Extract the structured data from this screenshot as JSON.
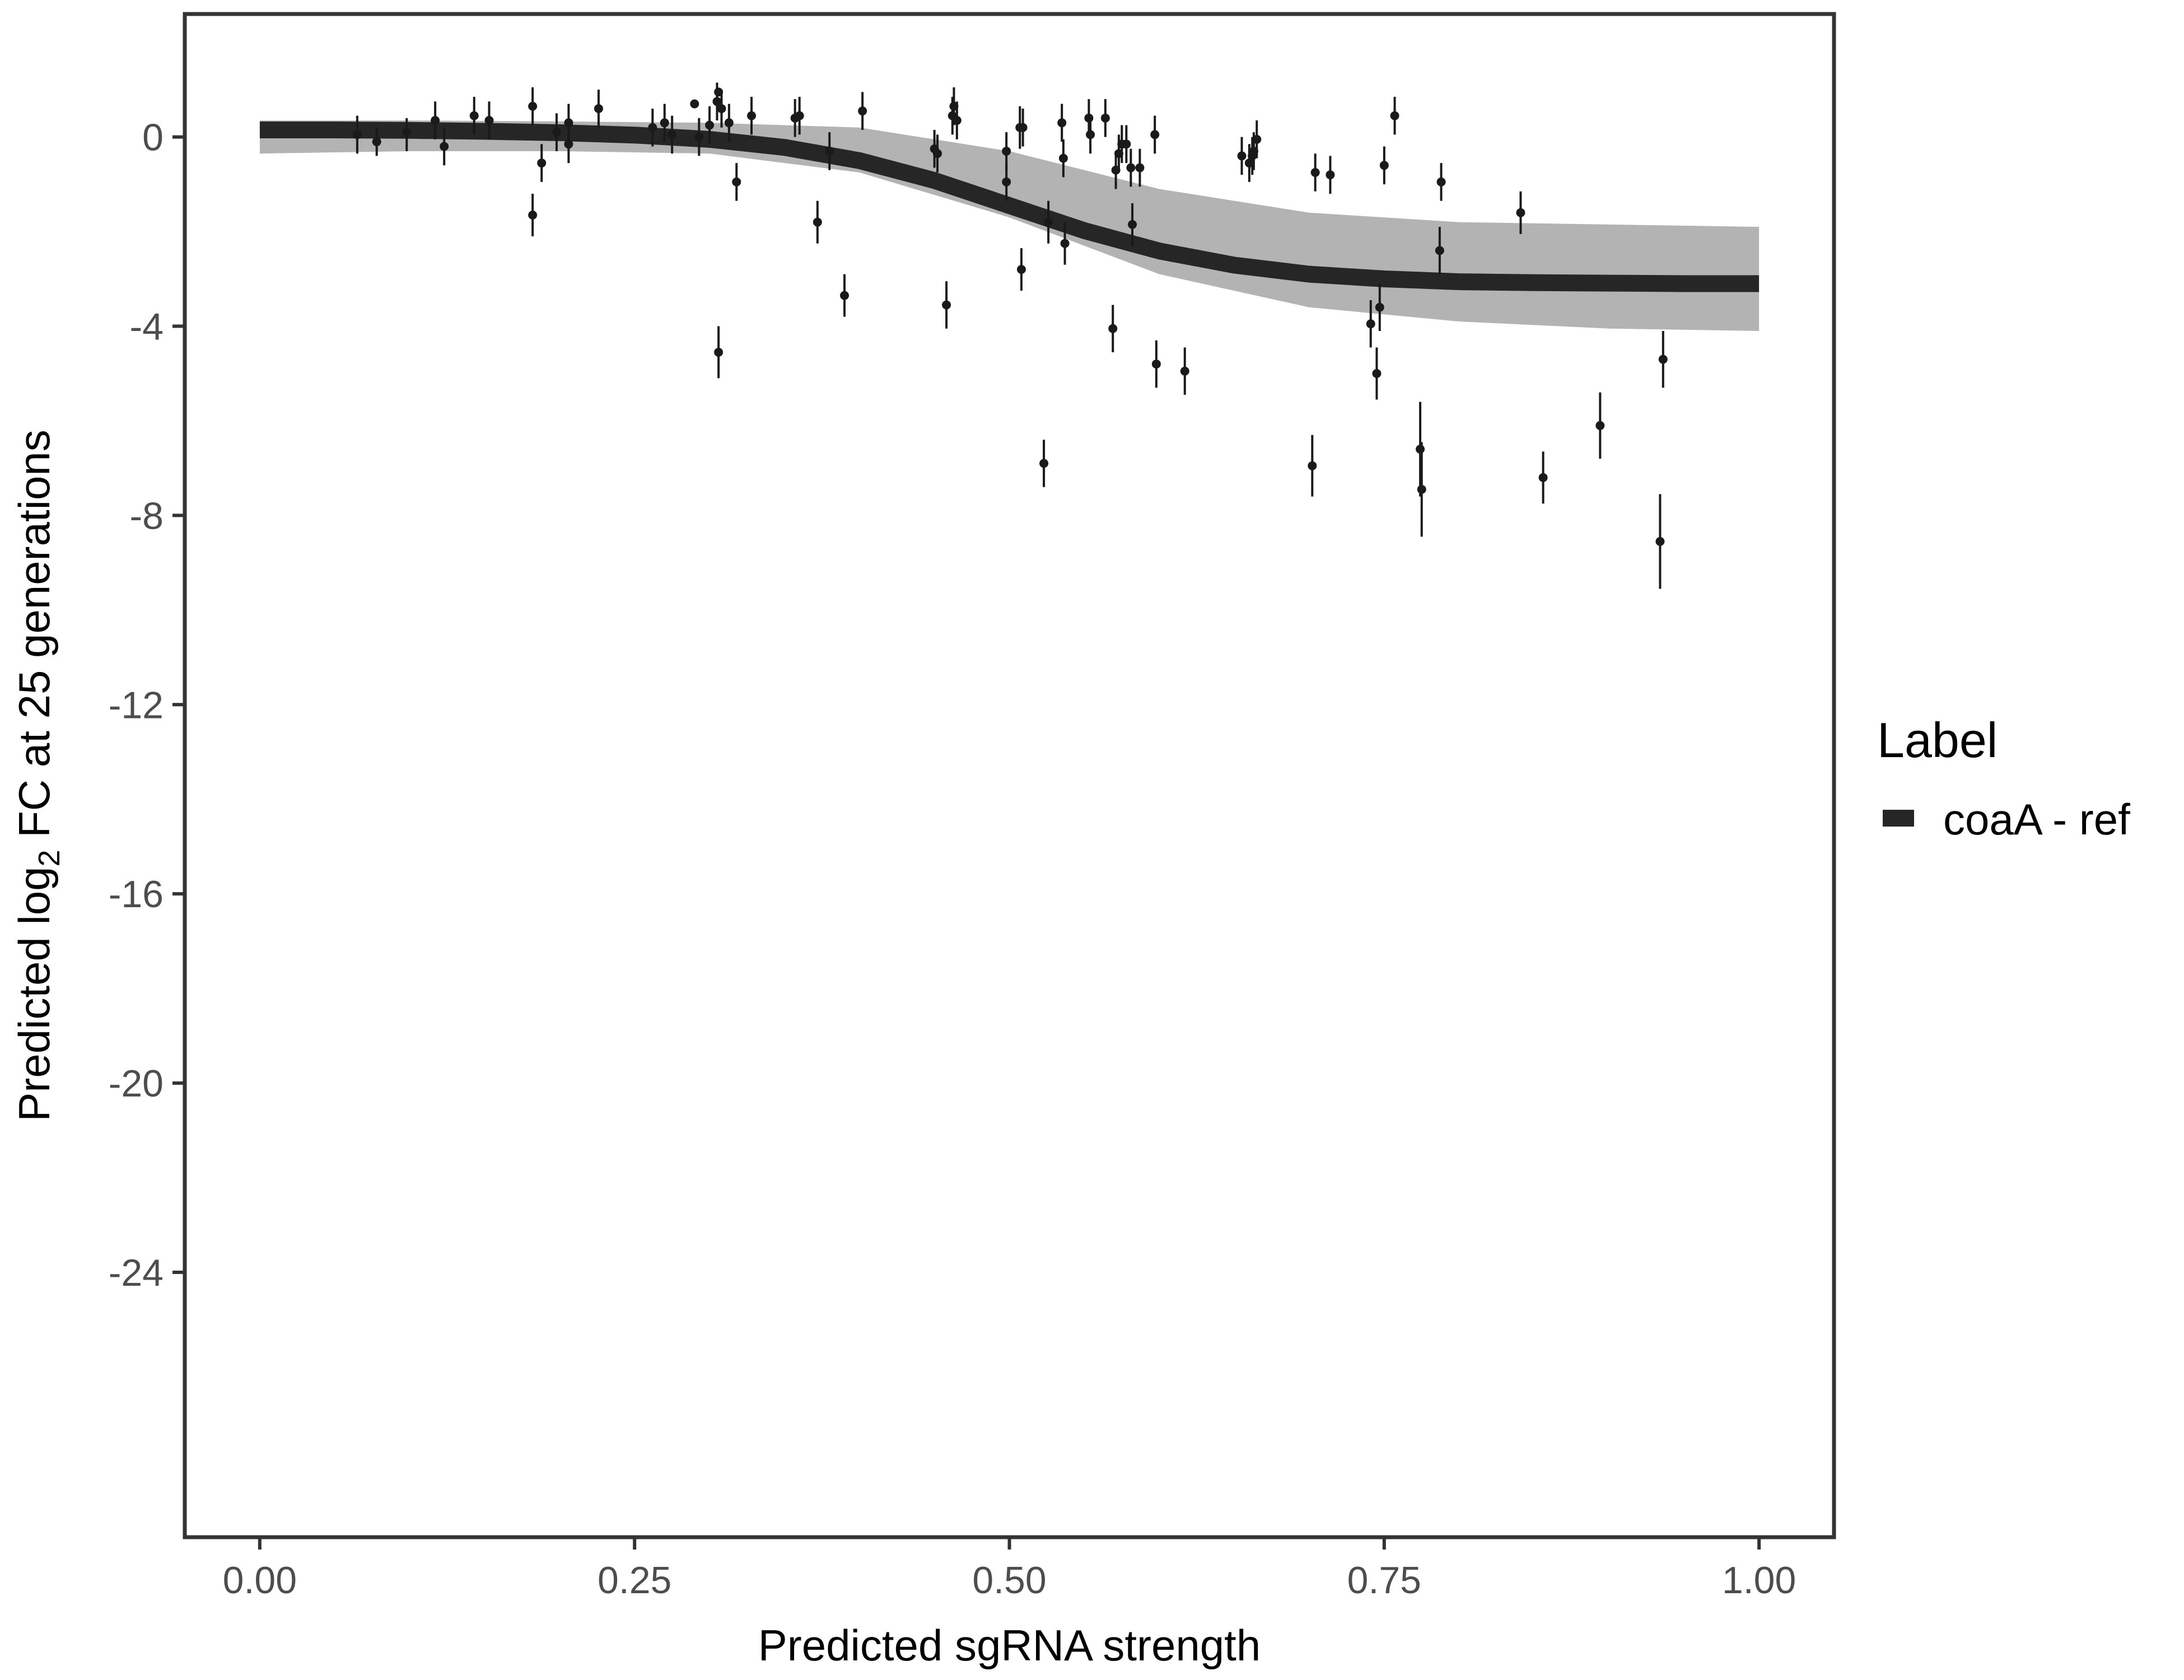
{
  "chart_data": {
    "type": "line",
    "xlabel": "Predicted sgRNA strength",
    "ylabel": {
      "prefix": "Predicted  log",
      "subscript": "2",
      "suffix": " FC at 25 generations"
    },
    "xlim": [
      -0.05,
      1.05
    ],
    "ylim": [
      -29.6,
      2.6
    ],
    "x_ticks": [
      0,
      0.25,
      0.5,
      0.75,
      1
    ],
    "x_tick_labels": [
      "0.00",
      "0.25",
      "0.50",
      "0.75",
      "1.00"
    ],
    "y_ticks": [
      0,
      -4,
      -8,
      -12,
      -16,
      -20,
      -24
    ],
    "y_tick_labels": [
      "0",
      "-4",
      "-8",
      "-12",
      "-16",
      "-20",
      "-24"
    ],
    "grid": false,
    "legend": {
      "title": "Label",
      "position": "right",
      "entries": [
        {
          "label": "coaA - ref",
          "color": "#262626"
        }
      ]
    },
    "series": [
      {
        "name": "coaA - ref",
        "role": "fitted_curve",
        "color": "#262626",
        "x": [
          0,
          0.05,
          0.1,
          0.15,
          0.2,
          0.25,
          0.3,
          0.35,
          0.4,
          0.45,
          0.5,
          0.55,
          0.6,
          0.65,
          0.7,
          0.75,
          0.8,
          0.85,
          0.9,
          0.95,
          1.0
        ],
        "y": [
          0.15,
          0.15,
          0.14,
          0.12,
          0.09,
          0.04,
          -0.05,
          -0.22,
          -0.5,
          -0.92,
          -1.45,
          -1.98,
          -2.41,
          -2.71,
          -2.9,
          -3.0,
          -3.06,
          -3.08,
          -3.09,
          -3.1,
          -3.1
        ]
      }
    ],
    "uncertainty_band": {
      "color": "#a6a6a6",
      "x": [
        0,
        0.1,
        0.2,
        0.3,
        0.4,
        0.5,
        0.6,
        0.7,
        0.8,
        0.9,
        1.0
      ],
      "upper": [
        0.35,
        0.35,
        0.33,
        0.3,
        0.2,
        -0.3,
        -1.1,
        -1.6,
        -1.8,
        -1.85,
        -1.9
      ],
      "lower": [
        -0.35,
        -0.3,
        -0.3,
        -0.35,
        -0.75,
        -1.7,
        -2.9,
        -3.6,
        -3.9,
        -4.05,
        -4.1
      ]
    },
    "observations": [
      {
        "x": 0.065,
        "y": 0.05,
        "lo": -0.35,
        "hi": 0.45
      },
      {
        "x": 0.078,
        "y": -0.1,
        "lo": -0.4,
        "hi": 0.2
      },
      {
        "x": 0.098,
        "y": 0.1,
        "lo": -0.3,
        "hi": 0.4
      },
      {
        "x": 0.117,
        "y": 0.35,
        "lo": -0.05,
        "hi": 0.75
      },
      {
        "x": 0.123,
        "y": -0.2,
        "lo": -0.6,
        "hi": 0.2
      },
      {
        "x": 0.143,
        "y": 0.45,
        "lo": 0.05,
        "hi": 0.85
      },
      {
        "x": 0.153,
        "y": 0.35,
        "lo": -0.05,
        "hi": 0.75
      },
      {
        "x": 0.182,
        "y": -1.65,
        "lo": -2.1,
        "hi": -1.2
      },
      {
        "x": 0.182,
        "y": 0.65,
        "lo": 0.25,
        "hi": 1.05
      },
      {
        "x": 0.188,
        "y": -0.55,
        "lo": -0.95,
        "hi": -0.15
      },
      {
        "x": 0.198,
        "y": 0.1,
        "lo": -0.3,
        "hi": 0.5
      },
      {
        "x": 0.206,
        "y": 0.3,
        "lo": -0.1,
        "hi": 0.7
      },
      {
        "x": 0.206,
        "y": -0.15,
        "lo": -0.55,
        "hi": 0.25
      },
      {
        "x": 0.226,
        "y": 0.6,
        "lo": 0.2,
        "hi": 1.0
      },
      {
        "x": 0.262,
        "y": 0.2,
        "lo": -0.2,
        "hi": 0.6
      },
      {
        "x": 0.27,
        "y": 0.3,
        "lo": -0.1,
        "hi": 0.7
      },
      {
        "x": 0.275,
        "y": 0.05,
        "lo": -0.35,
        "hi": 0.45
      },
      {
        "x": 0.29,
        "y": 0.7,
        "lo": 0.65,
        "hi": 0.75
      },
      {
        "x": 0.293,
        "y": 0.0,
        "lo": -0.4,
        "hi": 0.4
      },
      {
        "x": 0.3,
        "y": 0.25,
        "lo": -0.15,
        "hi": 0.65
      },
      {
        "x": 0.305,
        "y": 0.75,
        "lo": 0.35,
        "hi": 1.15
      },
      {
        "x": 0.306,
        "y": 0.95,
        "lo": 0.9,
        "hi": 1.0
      },
      {
        "x": 0.306,
        "y": -4.55,
        "lo": -5.1,
        "hi": -4.0
      },
      {
        "x": 0.308,
        "y": 0.6,
        "lo": 0.2,
        "hi": 1.0
      },
      {
        "x": 0.313,
        "y": 0.3,
        "lo": -0.1,
        "hi": 0.7
      },
      {
        "x": 0.318,
        "y": -0.95,
        "lo": -1.35,
        "hi": -0.55
      },
      {
        "x": 0.328,
        "y": 0.45,
        "lo": 0.05,
        "hi": 0.85
      },
      {
        "x": 0.357,
        "y": 0.4,
        "lo": 0.0,
        "hi": 0.8
      },
      {
        "x": 0.36,
        "y": 0.45,
        "lo": 0.05,
        "hi": 0.85
      },
      {
        "x": 0.372,
        "y": -1.8,
        "lo": -2.25,
        "hi": -1.35
      },
      {
        "x": 0.38,
        "y": -0.3,
        "lo": -0.7,
        "hi": 0.1
      },
      {
        "x": 0.39,
        "y": -3.35,
        "lo": -3.8,
        "hi": -2.9
      },
      {
        "x": 0.402,
        "y": 0.55,
        "lo": 0.15,
        "hi": 0.95
      },
      {
        "x": 0.45,
        "y": -0.25,
        "lo": -0.65,
        "hi": 0.15
      },
      {
        "x": 0.452,
        "y": -0.35,
        "lo": -0.75,
        "hi": 0.05
      },
      {
        "x": 0.458,
        "y": -3.55,
        "lo": -4.05,
        "hi": -3.05
      },
      {
        "x": 0.462,
        "y": 0.45,
        "lo": 0.05,
        "hi": 0.85
      },
      {
        "x": 0.463,
        "y": 0.65,
        "lo": 0.25,
        "hi": 1.05
      },
      {
        "x": 0.465,
        "y": 0.35,
        "lo": -0.05,
        "hi": 0.75
      },
      {
        "x": 0.498,
        "y": -0.3,
        "lo": -0.7,
        "hi": 0.1
      },
      {
        "x": 0.498,
        "y": -0.95,
        "lo": -1.35,
        "hi": -0.55
      },
      {
        "x": 0.507,
        "y": 0.2,
        "lo": -0.25,
        "hi": 0.65
      },
      {
        "x": 0.509,
        "y": 0.2,
        "lo": -0.2,
        "hi": 0.6
      },
      {
        "x": 0.508,
        "y": -2.8,
        "lo": -3.25,
        "hi": -2.35
      },
      {
        "x": 0.523,
        "y": -6.9,
        "lo": -7.4,
        "hi": -6.4
      },
      {
        "x": 0.526,
        "y": -1.8,
        "lo": -2.25,
        "hi": -1.35
      },
      {
        "x": 0.535,
        "y": 0.3,
        "lo": -0.1,
        "hi": 0.7
      },
      {
        "x": 0.536,
        "y": -0.45,
        "lo": -0.85,
        "hi": -0.05
      },
      {
        "x": 0.537,
        "y": -2.25,
        "lo": -2.7,
        "hi": -1.8
      },
      {
        "x": 0.553,
        "y": 0.4,
        "lo": 0.0,
        "hi": 0.8
      },
      {
        "x": 0.554,
        "y": 0.05,
        "lo": -0.35,
        "hi": 0.45
      },
      {
        "x": 0.564,
        "y": 0.4,
        "lo": 0.0,
        "hi": 0.8
      },
      {
        "x": 0.569,
        "y": -4.05,
        "lo": -4.55,
        "hi": -3.55
      },
      {
        "x": 0.571,
        "y": -0.7,
        "lo": -1.1,
        "hi": -0.3
      },
      {
        "x": 0.573,
        "y": -0.35,
        "lo": -0.75,
        "hi": 0.05
      },
      {
        "x": 0.575,
        "y": -0.15,
        "lo": -0.55,
        "hi": 0.25
      },
      {
        "x": 0.578,
        "y": -0.15,
        "lo": -0.55,
        "hi": 0.25
      },
      {
        "x": 0.581,
        "y": -0.65,
        "lo": -1.05,
        "hi": -0.25
      },
      {
        "x": 0.582,
        "y": -1.85,
        "lo": -2.3,
        "hi": -1.4
      },
      {
        "x": 0.587,
        "y": -0.65,
        "lo": -1.05,
        "hi": -0.25
      },
      {
        "x": 0.597,
        "y": 0.05,
        "lo": -0.35,
        "hi": 0.45
      },
      {
        "x": 0.598,
        "y": -4.8,
        "lo": -5.3,
        "hi": -4.3
      },
      {
        "x": 0.617,
        "y": -4.95,
        "lo": -5.45,
        "hi": -4.45
      },
      {
        "x": 0.655,
        "y": -0.4,
        "lo": -0.8,
        "hi": 0.0
      },
      {
        "x": 0.66,
        "y": -0.55,
        "lo": -0.95,
        "hi": -0.15
      },
      {
        "x": 0.662,
        "y": -0.4,
        "lo": -0.8,
        "hi": 0.0
      },
      {
        "x": 0.663,
        "y": -0.3,
        "lo": -0.7,
        "hi": 0.1
      },
      {
        "x": 0.665,
        "y": -0.05,
        "lo": -0.45,
        "hi": 0.35
      },
      {
        "x": 0.702,
        "y": -6.95,
        "lo": -7.6,
        "hi": -6.3
      },
      {
        "x": 0.704,
        "y": -0.75,
        "lo": -1.15,
        "hi": -0.35
      },
      {
        "x": 0.714,
        "y": -0.8,
        "lo": -1.2,
        "hi": -0.4
      },
      {
        "x": 0.741,
        "y": -3.95,
        "lo": -4.45,
        "hi": -3.45
      },
      {
        "x": 0.745,
        "y": -5.0,
        "lo": -5.55,
        "hi": -4.45
      },
      {
        "x": 0.747,
        "y": -3.6,
        "lo": -4.1,
        "hi": -3.1
      },
      {
        "x": 0.75,
        "y": -0.6,
        "lo": -1.0,
        "hi": -0.2
      },
      {
        "x": 0.757,
        "y": 0.45,
        "lo": 0.05,
        "hi": 0.85
      },
      {
        "x": 0.774,
        "y": -6.6,
        "lo": -7.6,
        "hi": -5.6
      },
      {
        "x": 0.775,
        "y": -7.45,
        "lo": -8.45,
        "hi": -6.45
      },
      {
        "x": 0.787,
        "y": -2.4,
        "lo": -2.9,
        "hi": -1.9
      },
      {
        "x": 0.788,
        "y": -0.95,
        "lo": -1.35,
        "hi": -0.55
      },
      {
        "x": 0.841,
        "y": -1.6,
        "lo": -2.05,
        "hi": -1.15
      },
      {
        "x": 0.856,
        "y": -7.2,
        "lo": -7.75,
        "hi": -6.65
      },
      {
        "x": 0.894,
        "y": -6.1,
        "lo": -6.8,
        "hi": -5.4
      },
      {
        "x": 0.934,
        "y": -8.55,
        "lo": -9.55,
        "hi": -7.55
      },
      {
        "x": 0.936,
        "y": -4.7,
        "lo": -5.3,
        "hi": -4.1
      }
    ]
  }
}
